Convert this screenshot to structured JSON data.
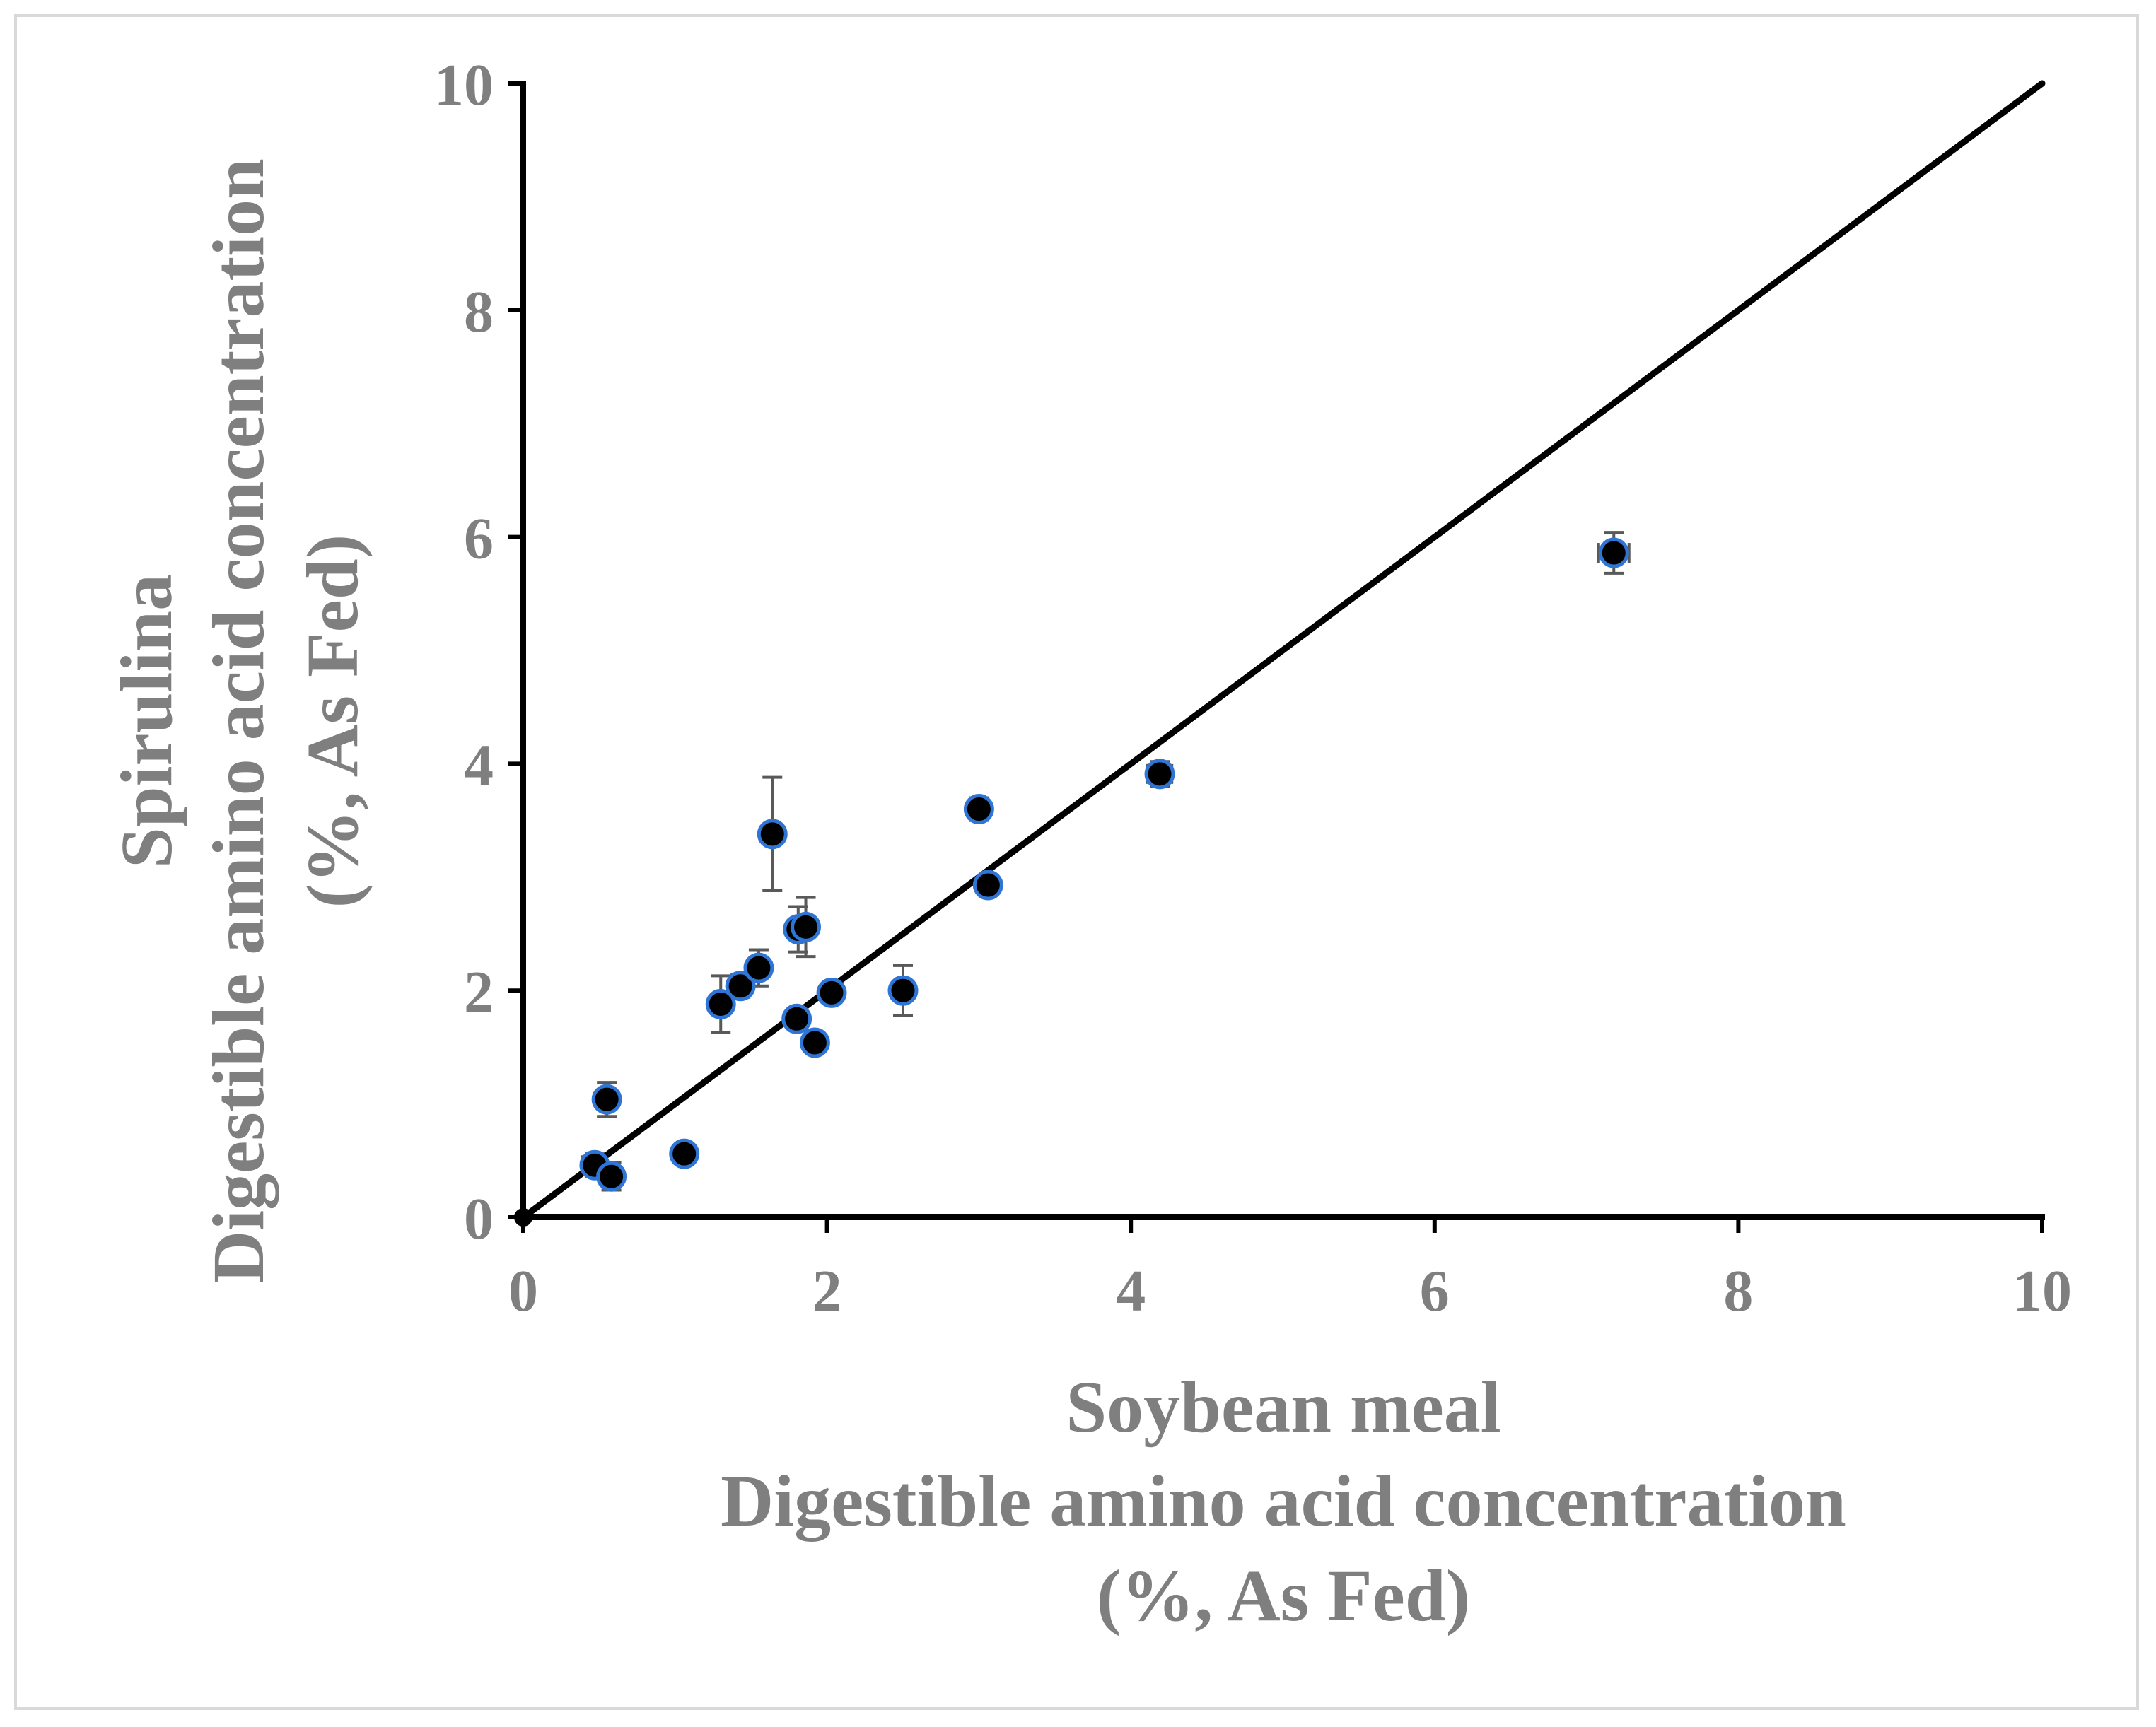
{
  "chart_data": {
    "type": "scatter",
    "xlabel_lines": [
      "Soybean meal",
      "Digestible amino acid concentration",
      "(%, As Fed)"
    ],
    "ylabel_lines": [
      "Spirulina",
      "Digestible amino acid concentration",
      "(%, As Fed)"
    ],
    "xlim": [
      0,
      10
    ],
    "ylim": [
      0,
      10
    ],
    "x_ticks": [
      0,
      2,
      4,
      6,
      8,
      10
    ],
    "y_ticks": [
      0,
      2,
      4,
      6,
      8,
      10
    ],
    "grid": false,
    "reference_line": {
      "from": [
        0,
        0
      ],
      "to": [
        10,
        10
      ]
    },
    "colors": {
      "marker_fill": "#000000",
      "marker_edge": "#2e75d6",
      "error_bar": "#595959",
      "axis": "#000000",
      "text": "#7f7f7f",
      "frame": "#d9d9d9"
    },
    "points": [
      {
        "x": 0.0,
        "y": 0.0,
        "xerr": 0,
        "yerr": 0
      },
      {
        "x": 0.47,
        "y": 0.46,
        "xerr": 0.08,
        "yerr": 0.1
      },
      {
        "x": 0.55,
        "y": 1.04,
        "xerr": 0.05,
        "yerr": 0.15
      },
      {
        "x": 0.58,
        "y": 0.36,
        "xerr": 0.05,
        "yerr": 0.12
      },
      {
        "x": 1.06,
        "y": 0.56,
        "xerr": 0.05,
        "yerr": 0.05
      },
      {
        "x": 1.3,
        "y": 1.88,
        "xerr": 0.05,
        "yerr": 0.25
      },
      {
        "x": 1.43,
        "y": 2.04,
        "xerr": 0.05,
        "yerr": 0.1
      },
      {
        "x": 1.55,
        "y": 2.2,
        "xerr": 0.06,
        "yerr": 0.16
      },
      {
        "x": 1.64,
        "y": 3.38,
        "xerr": 0.05,
        "yerr": 0.5
      },
      {
        "x": 1.8,
        "y": 1.75,
        "xerr": 0.06,
        "yerr": 0.06
      },
      {
        "x": 1.81,
        "y": 2.54,
        "xerr": 0.05,
        "yerr": 0.2
      },
      {
        "x": 1.86,
        "y": 2.56,
        "xerr": 0.06,
        "yerr": 0.26
      },
      {
        "x": 1.92,
        "y": 1.54,
        "xerr": 0.05,
        "yerr": 0.05
      },
      {
        "x": 2.03,
        "y": 1.98,
        "xerr": 0.06,
        "yerr": 0.08
      },
      {
        "x": 2.5,
        "y": 2.0,
        "xerr": 0.06,
        "yerr": 0.22
      },
      {
        "x": 3.0,
        "y": 3.6,
        "xerr": 0.06,
        "yerr": 0.1
      },
      {
        "x": 3.06,
        "y": 2.93,
        "xerr": 0.06,
        "yerr": 0.06
      },
      {
        "x": 4.19,
        "y": 3.91,
        "xerr": 0.08,
        "yerr": 0.11
      },
      {
        "x": 7.18,
        "y": 5.86,
        "xerr": 0.1,
        "yerr": 0.18
      }
    ]
  }
}
